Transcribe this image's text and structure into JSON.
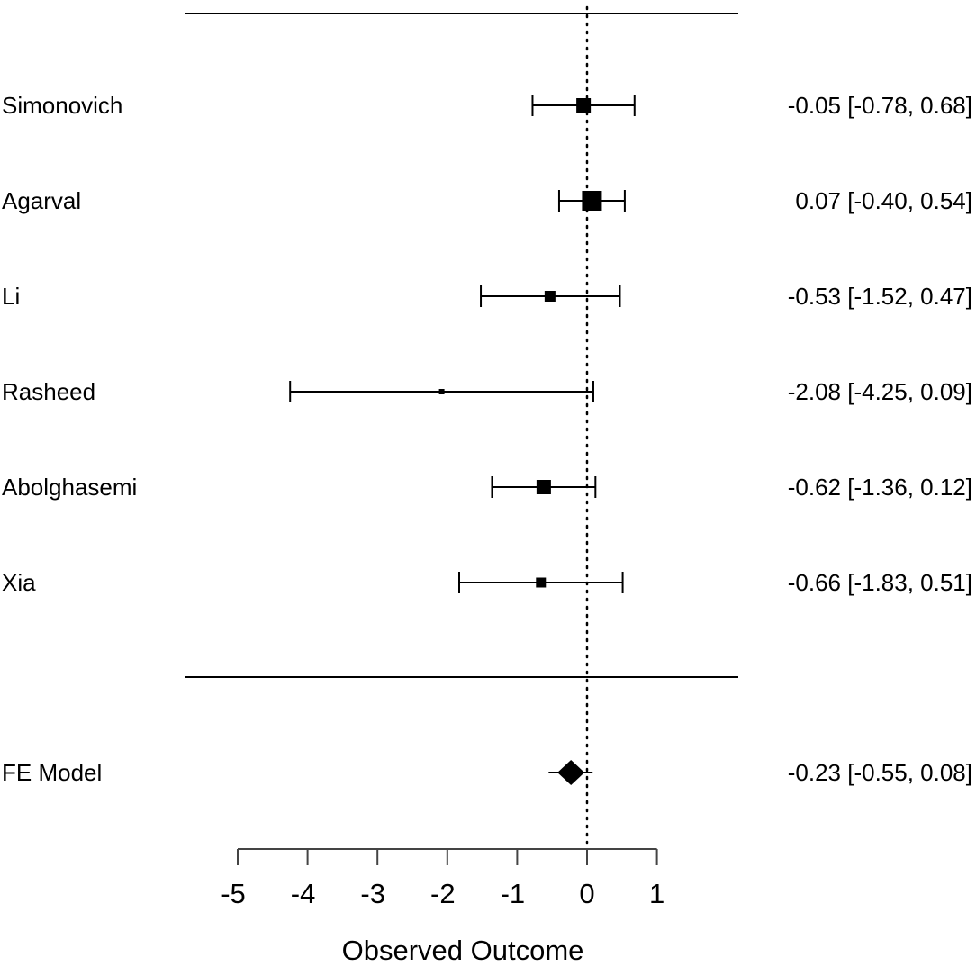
{
  "chart_data": {
    "type": "forest",
    "xlabel": "Observed Outcome",
    "xlim": [
      -5,
      1
    ],
    "xticks": [
      "-5",
      "-4",
      "-3",
      "-2",
      "-1",
      "0",
      "1"
    ],
    "reference_line": 0,
    "studies": [
      {
        "name": "Simonovich",
        "est": -0.05,
        "lo": -0.78,
        "hi": 0.68,
        "label": "-0.05 [-0.78, 0.68]"
      },
      {
        "name": "Agarval",
        "est": 0.07,
        "lo": -0.4,
        "hi": 0.54,
        "label": "0.07 [-0.40, 0.54]"
      },
      {
        "name": "Li",
        "est": -0.53,
        "lo": -1.52,
        "hi": 0.47,
        "label": "-0.53 [-1.52, 0.47]"
      },
      {
        "name": "Rasheed",
        "est": -2.08,
        "lo": -4.25,
        "hi": 0.09,
        "label": "-2.08 [-4.25, 0.09]"
      },
      {
        "name": "Abolghasemi",
        "est": -0.62,
        "lo": -1.36,
        "hi": 0.12,
        "label": "-0.62 [-1.36, 0.12]"
      },
      {
        "name": "Xia",
        "est": -0.66,
        "lo": -1.83,
        "hi": 0.51,
        "label": "-0.66 [-1.83, 0.51]"
      }
    ],
    "summary": {
      "name": "FE Model",
      "est": -0.23,
      "lo": -0.55,
      "hi": 0.08,
      "label": "-0.23 [-0.55, 0.08]"
    }
  }
}
